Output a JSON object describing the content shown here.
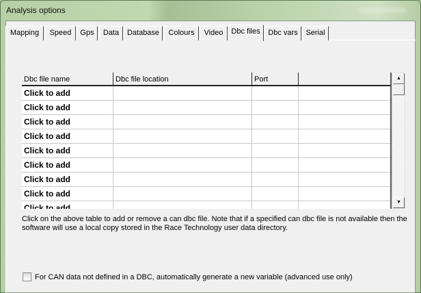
{
  "window": {
    "title": "Analysis options"
  },
  "tabs": [
    {
      "label": "Mapping"
    },
    {
      "label": "Speed"
    },
    {
      "label": "Gps"
    },
    {
      "label": "Data"
    },
    {
      "label": "Database"
    },
    {
      "label": "Colours"
    },
    {
      "label": "Video"
    },
    {
      "label": "Dbc files",
      "selected": true
    },
    {
      "label": "Dbc vars"
    },
    {
      "label": "Serial"
    }
  ],
  "table": {
    "columns": [
      "Dbc file name",
      "Dbc file location",
      "Port",
      ""
    ],
    "rows": [
      "Click to add",
      "Click to add",
      "Click to add",
      "Click to add",
      "Click to add",
      "Click to add",
      "Click to add",
      "Click to add",
      "Click to add"
    ]
  },
  "note": "Click on the above table to add or remove a  can dbc file. Note that if a specified can dbc file is not available then the software will use a local copy stored in the Race Technology user data directory.",
  "checkbox": {
    "label": "For CAN data not defined in a DBC, automatically generate a new variable (advanced use only)",
    "checked": false
  }
}
